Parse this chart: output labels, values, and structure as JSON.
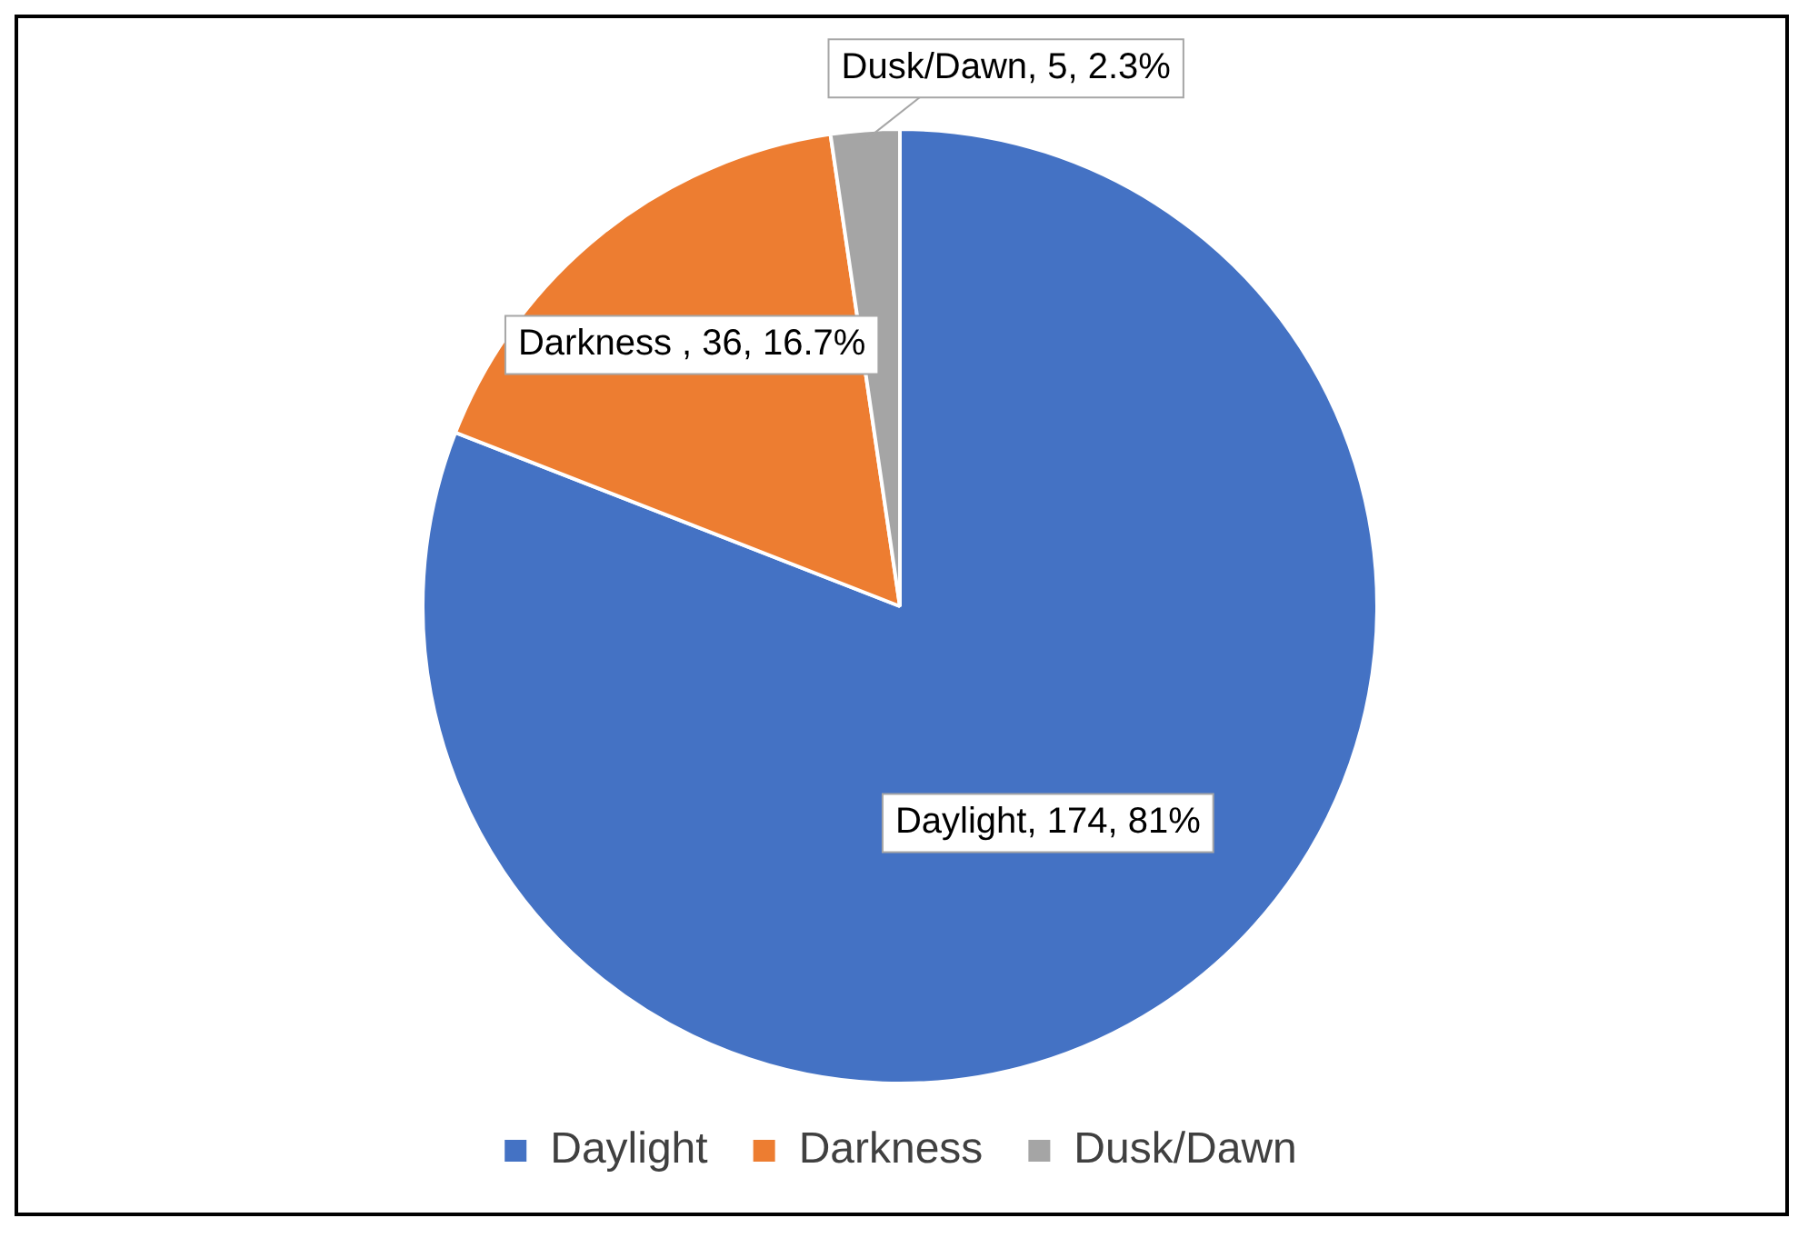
{
  "chart_data": {
    "type": "pie",
    "categories": [
      "Daylight",
      "Darkness",
      "Dusk/Dawn"
    ],
    "values": [
      174,
      36,
      5
    ],
    "colors": [
      "#4472c4",
      "#ed7d31",
      "#a5a5a5"
    ],
    "value_labels": [
      "Daylight, 174, 81%",
      "Darkness , 36, 16.7%",
      "Dusk/Dawn, 5, 2.3%"
    ],
    "legend": "bottom"
  }
}
